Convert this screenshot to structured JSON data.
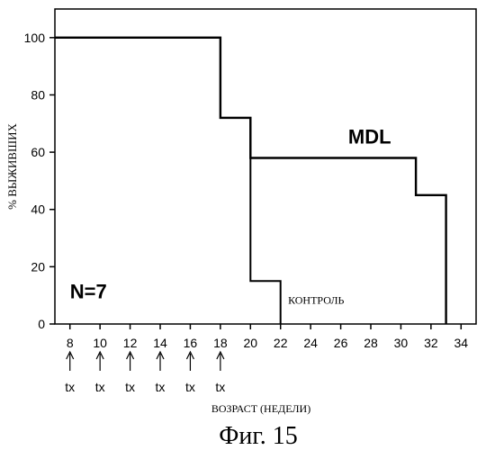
{
  "chart_data": {
    "type": "line",
    "title": "",
    "xlabel": "ВОЗРАСТ (НЕДЕЛИ)",
    "ylabel": "% ВЫЖИВШИХ",
    "xlim": [
      7,
      35
    ],
    "ylim": [
      0,
      110
    ],
    "x_ticks": [
      8,
      10,
      12,
      14,
      16,
      18,
      20,
      22,
      24,
      26,
      28,
      30,
      32,
      34
    ],
    "y_ticks": [
      0,
      20,
      40,
      60,
      80,
      100
    ],
    "grid": false,
    "series": [
      {
        "name": "MDL",
        "step": true,
        "points": [
          [
            7,
            100
          ],
          [
            18,
            100
          ],
          [
            18,
            72
          ],
          [
            20,
            72
          ],
          [
            20,
            58
          ],
          [
            31,
            58
          ],
          [
            31,
            45
          ],
          [
            33,
            45
          ],
          [
            33,
            0
          ]
        ]
      },
      {
        "name": "КОНТРОЛЬ",
        "step": true,
        "points": [
          [
            7,
            100
          ],
          [
            18,
            100
          ],
          [
            18,
            72
          ],
          [
            20,
            72
          ],
          [
            20,
            15
          ],
          [
            22,
            15
          ],
          [
            22,
            0
          ]
        ]
      }
    ],
    "annotations": [
      {
        "text": "N=7",
        "x": 8,
        "y": 9
      },
      {
        "text": "MDL",
        "x": 26.5,
        "y": 63
      },
      {
        "text": "КОНТРОЛЬ",
        "x": 22.5,
        "y": 7
      }
    ],
    "treatments": {
      "label": "tx",
      "weeks": [
        8,
        10,
        12,
        14,
        16,
        18
      ]
    }
  },
  "caption": "Фиг. 15"
}
